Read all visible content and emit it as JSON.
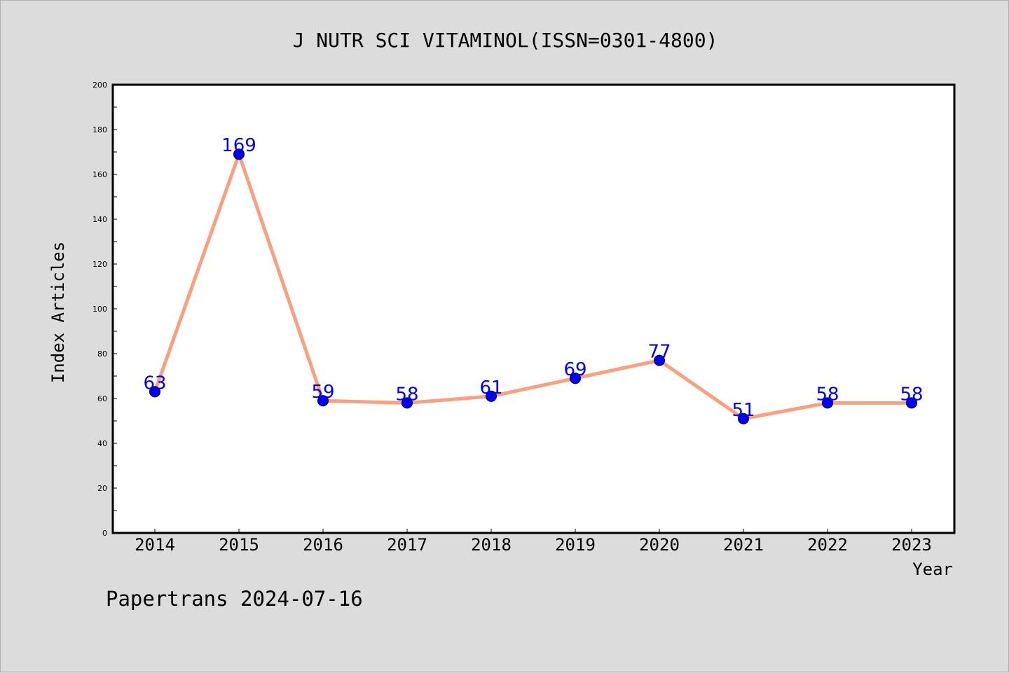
{
  "chart_data": {
    "type": "line",
    "title": "J NUTR SCI VITAMINOL(ISSN=0301-4800)",
    "xlabel": "Year",
    "ylabel": "Index Articles",
    "categories": [
      "2014",
      "2015",
      "2016",
      "2017",
      "2018",
      "2019",
      "2020",
      "2021",
      "2022",
      "2023"
    ],
    "series": [
      {
        "values": [
          63,
          169,
          59,
          58,
          61,
          69,
          77,
          51,
          58,
          58
        ]
      }
    ],
    "ylim": [
      0,
      200
    ],
    "y_ticks": [
      "0",
      "20",
      "40",
      "60",
      "80",
      "100",
      "120",
      "140",
      "160",
      "180",
      "200"
    ],
    "grid": false,
    "line_color": "#f9a07f",
    "marker_color": "#0000ff",
    "label_color": "#0000ff"
  },
  "footer": "Papertrans 2024-07-16"
}
